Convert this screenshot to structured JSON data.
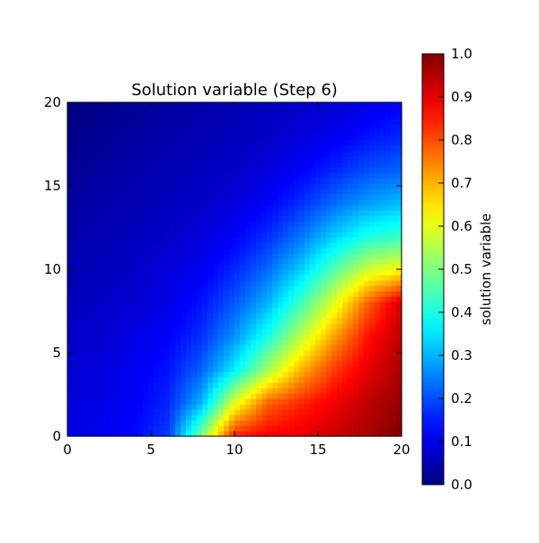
{
  "chart_data": {
    "type": "heatmap",
    "title": "Solution variable (Step 6)",
    "xlim": [
      0,
      20
    ],
    "ylim": [
      0,
      20
    ],
    "xticks": [
      0,
      5,
      10,
      15,
      20
    ],
    "yticks": [
      0,
      5,
      10,
      15,
      20
    ],
    "xtick_labels": [
      "0",
      "5",
      "10",
      "15",
      "20"
    ],
    "ytick_labels": [
      "0",
      "5",
      "10",
      "15",
      "20"
    ],
    "grid": false,
    "colormap": "jet",
    "colorbar": {
      "label": "solution variable",
      "range": [
        0.0,
        1.0
      ],
      "ticks": [
        0.0,
        0.1,
        0.2,
        0.3,
        0.4,
        0.5,
        0.6,
        0.7,
        0.8,
        0.9,
        1.0
      ],
      "tick_labels": [
        "0.0",
        "0.1",
        "0.2",
        "0.3",
        "0.4",
        "0.5",
        "0.6",
        "0.7",
        "0.8",
        "0.9",
        "1.0"
      ]
    },
    "grid_x": [
      0,
      2,
      4,
      6,
      8,
      10,
      12,
      14,
      16,
      18,
      20
    ],
    "grid_y": [
      0,
      2,
      4,
      6,
      8,
      10,
      12,
      14,
      16,
      18,
      20
    ],
    "z": [
      [
        0.1,
        0.11,
        0.13,
        0.18,
        0.5,
        0.85,
        0.88,
        0.9,
        0.93,
        0.96,
        1.0
      ],
      [
        0.09,
        0.1,
        0.12,
        0.16,
        0.3,
        0.6,
        0.78,
        0.84,
        0.89,
        0.94,
        0.98
      ],
      [
        0.08,
        0.09,
        0.11,
        0.14,
        0.22,
        0.36,
        0.54,
        0.7,
        0.82,
        0.9,
        0.96
      ],
      [
        0.07,
        0.08,
        0.1,
        0.12,
        0.17,
        0.27,
        0.4,
        0.56,
        0.72,
        0.86,
        0.94
      ],
      [
        0.06,
        0.07,
        0.08,
        0.1,
        0.14,
        0.21,
        0.3,
        0.44,
        0.6,
        0.78,
        0.92
      ],
      [
        0.05,
        0.06,
        0.07,
        0.09,
        0.11,
        0.16,
        0.23,
        0.33,
        0.46,
        0.58,
        0.62
      ],
      [
        0.04,
        0.05,
        0.06,
        0.07,
        0.09,
        0.12,
        0.17,
        0.24,
        0.33,
        0.4,
        0.43
      ],
      [
        0.03,
        0.04,
        0.05,
        0.06,
        0.07,
        0.09,
        0.12,
        0.17,
        0.23,
        0.28,
        0.31
      ],
      [
        0.02,
        0.03,
        0.04,
        0.05,
        0.06,
        0.07,
        0.09,
        0.12,
        0.16,
        0.2,
        0.22
      ],
      [
        0.01,
        0.02,
        0.03,
        0.04,
        0.05,
        0.06,
        0.07,
        0.09,
        0.11,
        0.14,
        0.16
      ],
      [
        0.0,
        0.01,
        0.02,
        0.03,
        0.04,
        0.05,
        0.06,
        0.07,
        0.08,
        0.1,
        0.12
      ]
    ]
  }
}
